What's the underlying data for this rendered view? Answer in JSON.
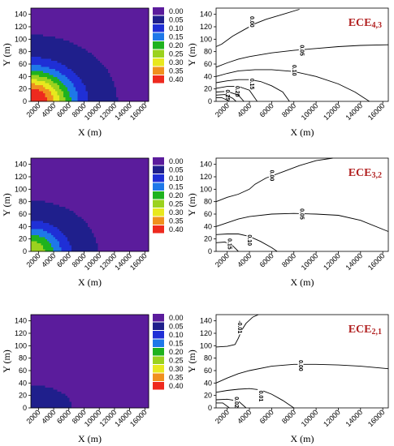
{
  "colors": {
    "levels": [
      "#5b1c9c",
      "#1f1f8c",
      "#1f2fd6",
      "#1e78e8",
      "#1eb21e",
      "#9bd21e",
      "#e8e81e",
      "#f0901e",
      "#ee2a1e"
    ],
    "title": "#b22222"
  },
  "legend_values": [
    "0.00",
    "0.05",
    "0.10",
    "0.15",
    "0.20",
    "0.25",
    "0.30",
    "0.35",
    "0.40"
  ],
  "chart_data": [
    {
      "type": "heatmap",
      "panel": "top-left",
      "xlabel": "X (m)",
      "ylabel": "Y (m)",
      "xlim": [
        1000,
        16500
      ],
      "ylim": [
        0,
        150
      ],
      "x_ticks": [
        2000,
        4000,
        6000,
        8000,
        10000,
        12000,
        14000,
        16000
      ],
      "y_ticks": [
        0,
        20,
        40,
        60,
        80,
        100,
        120,
        140
      ],
      "color_levels": [
        0.0,
        0.05,
        0.1,
        0.15,
        0.2,
        0.25,
        0.3,
        0.35,
        0.4
      ],
      "field": {
        "peak": 0.42,
        "rx": 8500,
        "ry": 80
      }
    },
    {
      "type": "contour",
      "panel": "top-right",
      "title_main": "ECE",
      "title_sub": "4,3",
      "xlabel": "X (m)",
      "ylabel": "Y (m)",
      "xlim": [
        1000,
        16500
      ],
      "ylim": [
        0,
        150
      ],
      "x_ticks": [
        2000,
        4000,
        6000,
        8000,
        10000,
        12000,
        14000,
        16000
      ],
      "y_ticks": [
        0,
        20,
        40,
        60,
        80,
        100,
        120,
        140
      ],
      "contours": [
        {
          "level": "0.00",
          "label_x": 4200,
          "label_y": 128,
          "points": [
            [
              1000,
              88
            ],
            [
              1500,
              92
            ],
            [
              2500,
              105
            ],
            [
              3500,
              115
            ],
            [
              4500,
              125
            ],
            [
              5500,
              132
            ],
            [
              7000,
              140
            ],
            [
              8500,
              148
            ]
          ]
        },
        {
          "level": "0.05",
          "label_x": 8700,
          "label_y": 82,
          "points": [
            [
              1000,
              55
            ],
            [
              2000,
              62
            ],
            [
              3000,
              68
            ],
            [
              4000,
              72
            ],
            [
              6000,
              78
            ],
            [
              8000,
              82
            ],
            [
              10000,
              85
            ],
            [
              12000,
              88
            ],
            [
              14000,
              90
            ],
            [
              16500,
              91
            ]
          ]
        },
        {
          "level": "0.10",
          "label_x": 8000,
          "label_y": 50,
          "points": [
            [
              1000,
              40
            ],
            [
              2000,
              45
            ],
            [
              3000,
              49
            ],
            [
              4500,
              51
            ],
            [
              6000,
              51
            ],
            [
              8000,
              48
            ],
            [
              10000,
              40
            ],
            [
              12000,
              28
            ],
            [
              13500,
              15
            ],
            [
              14800,
              0
            ]
          ]
        },
        {
          "level": "0.15",
          "label_x": 4200,
          "label_y": 28,
          "points": [
            [
              1000,
              30
            ],
            [
              2000,
              33
            ],
            [
              3000,
              35
            ],
            [
              4000,
              35
            ],
            [
              5000,
              32
            ],
            [
              6000,
              25
            ],
            [
              7000,
              15
            ],
            [
              7600,
              0
            ]
          ]
        },
        {
          "level": "0.20",
          "label_x": 2900,
          "label_y": 16,
          "points": [
            [
              1000,
              21
            ],
            [
              2000,
              24
            ],
            [
              3000,
              24
            ],
            [
              4000,
              18
            ],
            [
              4700,
              0
            ]
          ]
        },
        {
          "level": "0.25",
          "label_x": 2000,
          "label_y": 10,
          "points": [
            [
              1000,
              15
            ],
            [
              2000,
              16
            ],
            [
              3000,
              10
            ],
            [
              3500,
              0
            ]
          ]
        },
        {
          "level": "",
          "label_x": 0,
          "label_y": 0,
          "points": [
            [
              1000,
              10
            ],
            [
              1800,
              11
            ],
            [
              2500,
              5
            ],
            [
              2800,
              0
            ]
          ]
        },
        {
          "level": "",
          "label_x": 0,
          "label_y": 0,
          "points": [
            [
              1000,
              6
            ],
            [
              1500,
              6
            ],
            [
              2000,
              2
            ],
            [
              2200,
              0
            ]
          ]
        }
      ]
    },
    {
      "type": "heatmap",
      "panel": "middle-left",
      "xlabel": "X (m)",
      "ylabel": "Y (m)",
      "xlim": [
        1000,
        16500
      ],
      "ylim": [
        0,
        150
      ],
      "x_ticks": [
        2000,
        4000,
        6000,
        8000,
        10000,
        12000,
        14000,
        16000
      ],
      "y_ticks": [
        0,
        20,
        40,
        60,
        80,
        100,
        120,
        140
      ],
      "color_levels": [
        0.0,
        0.05,
        0.1,
        0.15,
        0.2,
        0.25,
        0.3,
        0.35,
        0.4
      ],
      "field": {
        "peak": 0.24,
        "rx": 7000,
        "ry": 65
      }
    },
    {
      "type": "contour",
      "panel": "middle-right",
      "title_main": "ECE",
      "title_sub": "3,2",
      "xlabel": "X (m)",
      "ylabel": "Y (m)",
      "xlim": [
        1000,
        16500
      ],
      "ylim": [
        0,
        150
      ],
      "x_ticks": [
        2000,
        4000,
        6000,
        8000,
        10000,
        12000,
        14000,
        16000
      ],
      "y_ticks": [
        0,
        20,
        40,
        60,
        80,
        100,
        120,
        140
      ],
      "contours": [
        {
          "level": "0.00",
          "label_x": 6000,
          "label_y": 122,
          "points": [
            [
              1000,
              80
            ],
            [
              2000,
              87
            ],
            [
              3000,
              92
            ],
            [
              4000,
              100
            ],
            [
              4500,
              108
            ],
            [
              5500,
              118
            ],
            [
              7000,
              128
            ],
            [
              8500,
              138
            ],
            [
              10000,
              146
            ],
            [
              11500,
              150
            ]
          ]
        },
        {
          "level": "0.05",
          "label_x": 8700,
          "label_y": 60,
          "points": [
            [
              1000,
              40
            ],
            [
              2000,
              46
            ],
            [
              3000,
              52
            ],
            [
              4000,
              56
            ],
            [
              6000,
              60
            ],
            [
              8000,
              61
            ],
            [
              10000,
              60
            ],
            [
              12000,
              58
            ],
            [
              14000,
              50
            ],
            [
              16500,
              32
            ]
          ]
        },
        {
          "level": "0.10",
          "label_x": 4000,
          "label_y": 18,
          "points": [
            [
              1000,
              27
            ],
            [
              2000,
              28
            ],
            [
              3000,
              28
            ],
            [
              4000,
              24
            ],
            [
              5000,
              16
            ],
            [
              6000,
              6
            ],
            [
              6500,
              0
            ]
          ]
        },
        {
          "level": "0.15",
          "label_x": 2200,
          "label_y": 12,
          "points": [
            [
              1000,
              14
            ],
            [
              1800,
              15
            ],
            [
              2500,
              9
            ],
            [
              3000,
              0
            ]
          ]
        }
      ]
    },
    {
      "type": "heatmap",
      "panel": "bottom-left",
      "xlabel": "X (m)",
      "ylabel": "Y (m)",
      "xlim": [
        1000,
        16500
      ],
      "ylim": [
        0,
        150
      ],
      "x_ticks": [
        2000,
        4000,
        6000,
        8000,
        10000,
        12000,
        14000,
        16000
      ],
      "y_ticks": [
        0,
        20,
        40,
        60,
        80,
        100,
        120,
        140
      ],
      "color_levels": [
        0.0,
        0.05,
        0.1,
        0.15,
        0.2,
        0.25,
        0.3,
        0.35,
        0.4
      ],
      "field": {
        "peak": 0.035,
        "rx": 6000,
        "ry": 40
      }
    },
    {
      "type": "contour",
      "panel": "bottom-right",
      "title_main": "ECE",
      "title_sub": "2,1",
      "xlabel": "X (m)",
      "ylabel": "Y (m)",
      "xlim": [
        1000,
        16500
      ],
      "ylim": [
        0,
        150
      ],
      "x_ticks": [
        2000,
        4000,
        6000,
        8000,
        10000,
        12000,
        14000,
        16000
      ],
      "y_ticks": [
        0,
        20,
        40,
        60,
        80,
        100,
        120,
        140
      ],
      "contours": [
        {
          "level": "-0.01",
          "label_x": 3100,
          "label_y": 130,
          "points": [
            [
              1000,
              98
            ],
            [
              2000,
              99
            ],
            [
              2700,
              102
            ],
            [
              3000,
              112
            ],
            [
              3300,
              125
            ],
            [
              3700,
              136
            ],
            [
              4300,
              146
            ],
            [
              4800,
              150
            ]
          ]
        },
        {
          "level": "0.00",
          "label_x": 8600,
          "label_y": 68,
          "points": [
            [
              1000,
              40
            ],
            [
              2000,
              48
            ],
            [
              3000,
              55
            ],
            [
              4000,
              60
            ],
            [
              6000,
              67
            ],
            [
              8000,
              70
            ],
            [
              10000,
              70
            ],
            [
              12000,
              69
            ],
            [
              14000,
              67
            ],
            [
              16500,
              63
            ]
          ]
        },
        {
          "level": "0.01",
          "label_x": 5000,
          "label_y": 19,
          "points": [
            [
              1000,
              25
            ],
            [
              2000,
              28
            ],
            [
              3000,
              30
            ],
            [
              4000,
              31
            ],
            [
              5000,
              29
            ],
            [
              6000,
              22
            ],
            [
              7000,
              12
            ],
            [
              8000,
              0
            ]
          ]
        },
        {
          "level": "0.02",
          "label_x": 2800,
          "label_y": 9,
          "points": [
            [
              1000,
              13
            ],
            [
              2000,
              14
            ],
            [
              3000,
              11
            ],
            [
              3700,
              0
            ]
          ]
        },
        {
          "level": "",
          "label_x": 0,
          "label_y": 0,
          "points": [
            [
              1000,
              8
            ],
            [
              1600,
              8
            ],
            [
              2200,
              0
            ]
          ]
        }
      ]
    }
  ]
}
